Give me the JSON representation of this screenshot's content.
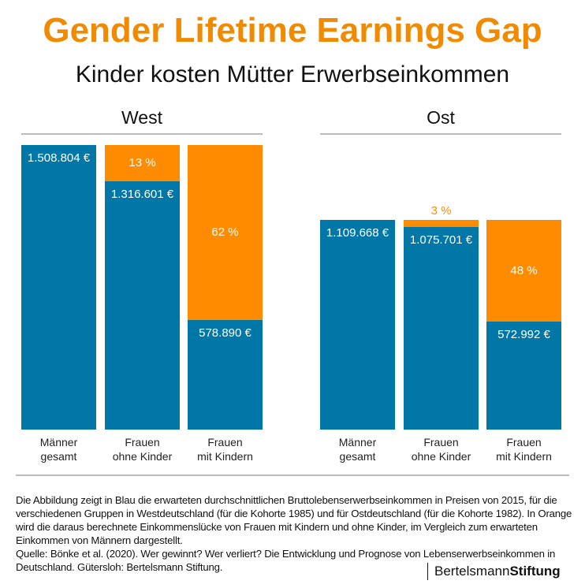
{
  "title": "Gender Lifetime Earnings Gap",
  "subtitle": "Kinder kosten Mütter Erwerbseinkommen",
  "colors": {
    "earnings": "#0077a7",
    "gap": "#ff8c00"
  },
  "chart_data": [
    {
      "type": "bar",
      "stacked": true,
      "title": "West",
      "categories": [
        "Männer\ngesamt",
        "Frauen\nohne Kinder",
        "Frauen\nmit Kindern"
      ],
      "series": [
        {
          "values": [
            1508804,
            1316601,
            578890
          ],
          "labels": [
            "1.508.804 €",
            "1.316.601 €",
            "578.890 €"
          ]
        },
        {
          "values": [
            0,
            192203,
            929914
          ],
          "labels": [
            "",
            "13 %",
            "62 %"
          ]
        }
      ],
      "ylim": [
        0,
        1508804
      ],
      "grid": false
    },
    {
      "type": "bar",
      "stacked": true,
      "title": "Ost",
      "categories": [
        "Männer\ngesamt",
        "Frauen\nohne Kinder",
        "Frauen\nmit Kindern"
      ],
      "series": [
        {
          "values": [
            1109668,
            1075701,
            572992
          ],
          "labels": [
            "1.109.668 €",
            "1.075.701 €",
            "572.992 €"
          ]
        },
        {
          "values": [
            0,
            33967,
            536676
          ],
          "labels": [
            "",
            "3 %",
            "48 %"
          ]
        }
      ],
      "ylim": [
        0,
        1508804
      ],
      "grid": false
    }
  ],
  "footnote": "Die Abbildung zeigt in Blau die erwarteten durchschnittlichen Bruttolebenserwerbseinkommen in Preisen von 2015, für die verschiedenen Gruppen in Westdeutschland (für die Kohorte 1985) und für Ostdeutschland (für die Kohorte 1982). In Orange wird die daraus berechnete Einkommenslücke von Frauen mit Kindern und ohne Kinder, im Vergleich zum erwarteten Einkommen von Männern dargestellt.",
  "source": "Quelle: Bönke et al. (2020). Wer gewinnt? Wer verliert? Die Entwicklung und Prognose von Lebenserwerbseinkommen in Deutschland. Gütersloh: Bertelsmann Stiftung.",
  "logo": {
    "a": "Bertelsmann",
    "b": "Stiftung"
  }
}
